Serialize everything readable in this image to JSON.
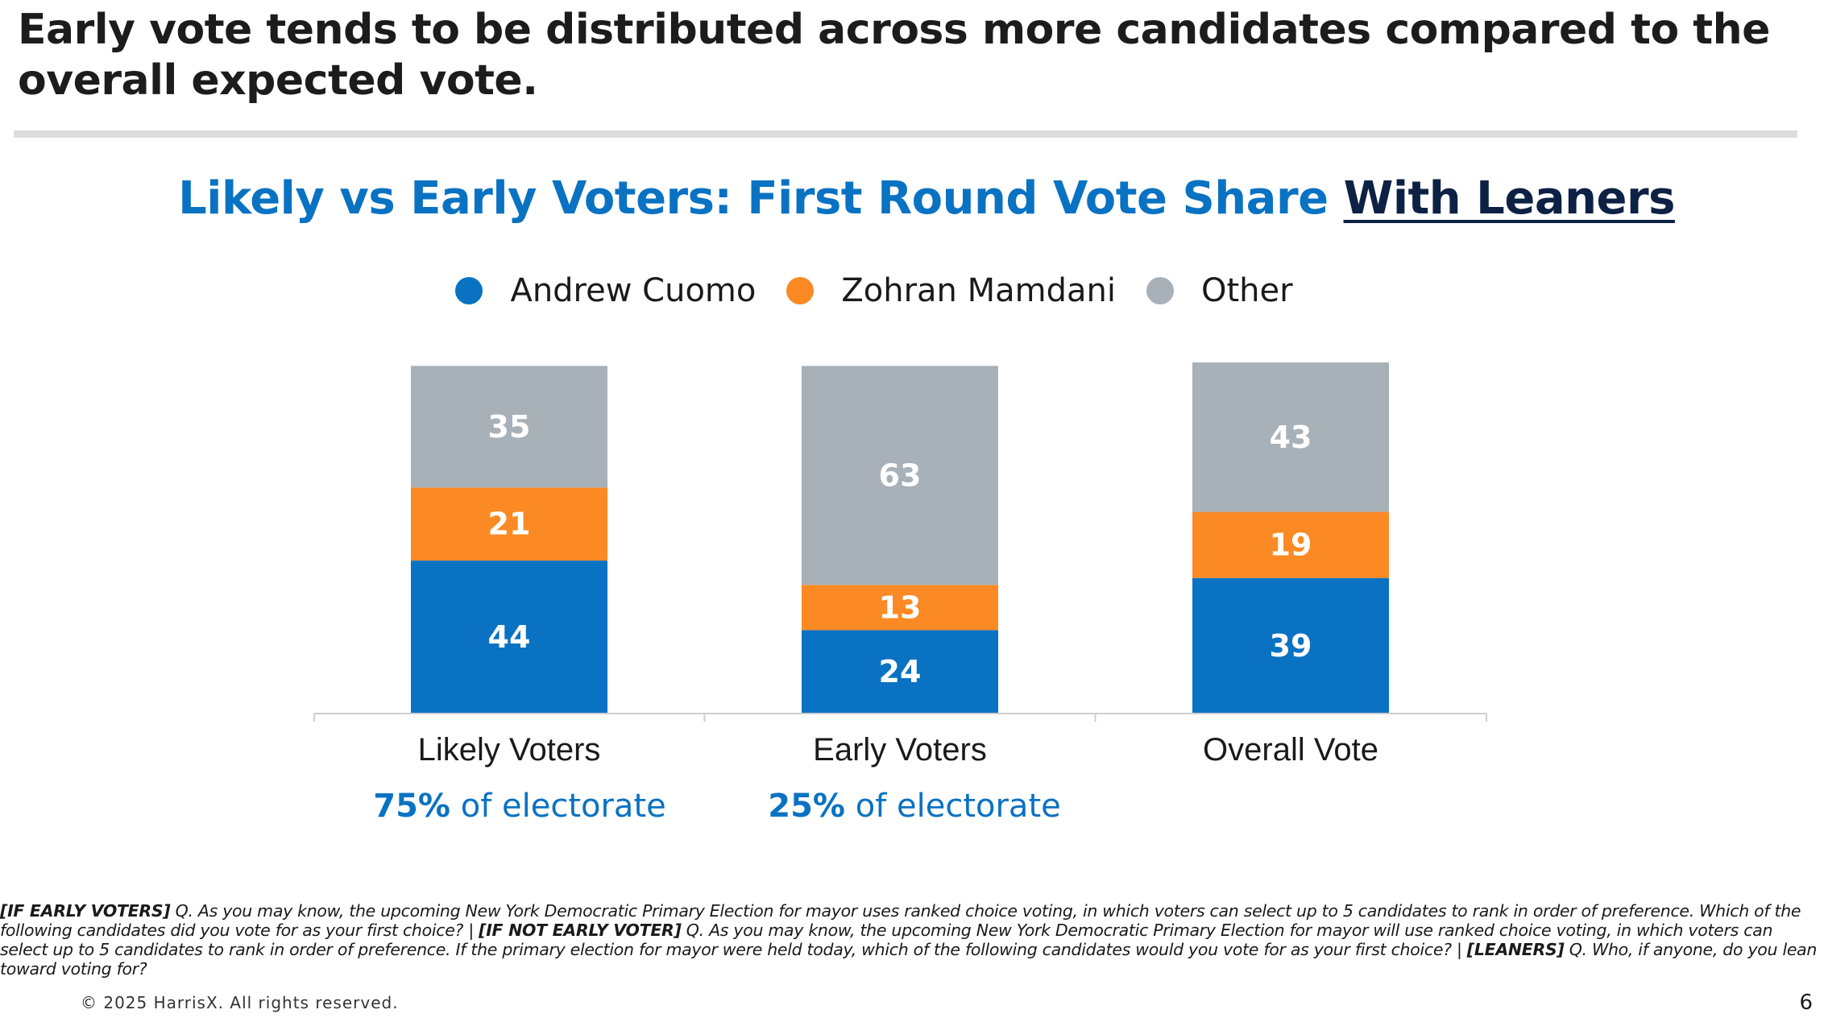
{
  "headline": "Early vote tends to be distributed across more candidates compared to the overall expected vote.",
  "chart_title": {
    "main": "Likely vs Early Voters: First Round Vote Share",
    "emphasis": "With Leaners"
  },
  "colors": {
    "andrew_cuomo": "#0a72c2",
    "zohran_mamdani": "#fb8a24",
    "other": "#a8b0b8",
    "title_blue": "#0a72c2",
    "title_dark": "#0c2144"
  },
  "legend": [
    {
      "label": "Andrew Cuomo",
      "color": "#0a72c2"
    },
    {
      "label": "Zohran Mamdani",
      "color": "#fb8a24"
    },
    {
      "label": "Other",
      "color": "#a8b0b8"
    }
  ],
  "chart_data": {
    "type": "bar",
    "stacked": true,
    "categories": [
      "Likely Voters",
      "Early Voters",
      "Overall Vote"
    ],
    "series": [
      {
        "name": "Andrew Cuomo",
        "values": [
          44,
          24,
          39
        ],
        "color": "#0a72c2"
      },
      {
        "name": "Zohran Mamdani",
        "values": [
          21,
          13,
          19
        ],
        "color": "#fb8a24"
      },
      {
        "name": "Other",
        "values": [
          35,
          63,
          43
        ],
        "color": "#a8b0b8"
      }
    ],
    "ylim": [
      0,
      101
    ],
    "legend_position": "top",
    "grid": false
  },
  "electorate_notes": [
    {
      "pct": "75%",
      "text": " of electorate"
    },
    {
      "pct": "25%",
      "text": " of electorate"
    }
  ],
  "footnote": {
    "tag1": "[IF EARLY VOTERS]",
    "text1": " Q. As you may know, the upcoming New York Democratic Primary Election for mayor uses ranked choice voting, in which voters can select up to 5 candidates to rank in order of preference. Which of the following candidates did you vote for as your first choice? | ",
    "tag2": "[IF NOT EARLY VOTER]",
    "text2": " Q. As you may know, the upcoming New York Democratic Primary Election for mayor will use ranked choice voting, in which voters can select up to 5 candidates to rank in order of preference. If the primary election for mayor were held today, which of the following candidates would you vote for as your first choice? | ",
    "tag3": "[LEANERS]",
    "text3": " Q. Who, if anyone, do you lean toward voting for?"
  },
  "copyright": "© 2025 HarrisX. All rights reserved.",
  "page_number": "6"
}
